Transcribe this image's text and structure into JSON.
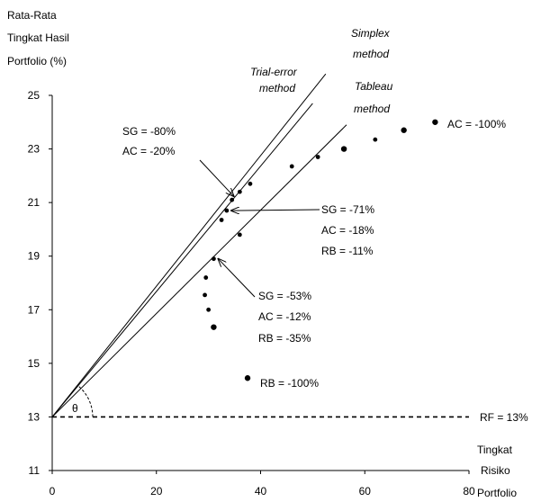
{
  "chart_data": {
    "type": "scatter",
    "ylabel": [
      "Rata-Rata",
      "Tingkat Hasil",
      "Portfolio (%)"
    ],
    "xlabel": [
      "Tingkat",
      "Risiko",
      "Portfolio"
    ],
    "xlim": [
      0,
      80
    ],
    "ylim": [
      11,
      25
    ],
    "x_ticks": [
      "0",
      "20",
      "40",
      "60",
      "80"
    ],
    "y_ticks": [
      "11",
      "13",
      "15",
      "17",
      "19",
      "21",
      "23",
      "25"
    ],
    "grid": false,
    "series": [
      {
        "points": [
          {
            "x": 73.5,
            "y": 24.0
          },
          {
            "x": 67.5,
            "y": 23.7
          },
          {
            "x": 62.0,
            "y": 23.35
          },
          {
            "x": 56.0,
            "y": 23.0
          },
          {
            "x": 51.0,
            "y": 22.7
          },
          {
            "x": 46.0,
            "y": 22.35
          },
          {
            "x": 38.0,
            "y": 21.7
          },
          {
            "x": 36.0,
            "y": 21.4
          },
          {
            "x": 34.5,
            "y": 21.1
          },
          {
            "x": 33.5,
            "y": 20.7
          },
          {
            "x": 32.5,
            "y": 20.35
          },
          {
            "x": 36.0,
            "y": 19.8
          },
          {
            "x": 31.0,
            "y": 18.9
          },
          {
            "x": 29.5,
            "y": 18.2
          },
          {
            "x": 29.3,
            "y": 17.55
          },
          {
            "x": 30.0,
            "y": 17.0
          },
          {
            "x": 31.0,
            "y": 16.35
          },
          {
            "x": 37.5,
            "y": 14.45
          }
        ]
      }
    ],
    "lines": [
      {
        "label": "Trial-error method",
        "x": [
          0,
          50
        ],
        "y": [
          13,
          24.7
        ]
      },
      {
        "label": "Simplex method",
        "x": [
          0,
          52.5
        ],
        "y": [
          13,
          25.8
        ]
      },
      {
        "label": "Tableau method",
        "x": [
          0,
          56.5
        ],
        "y": [
          13,
          23.9
        ]
      },
      {
        "label": "RF = 13%",
        "x": [
          0,
          80
        ],
        "y": [
          13,
          13
        ],
        "style": "dashed"
      }
    ],
    "annotations": [
      {
        "lines": [
          "SG = -80%",
          "AC = -20%"
        ],
        "arrow_to": {
          "x": 34.5,
          "y": 21.1
        }
      },
      {
        "lines": [
          "SG = -71%",
          "AC = -18%",
          "RB = -11%"
        ],
        "arrow_to": {
          "x": 33.5,
          "y": 20.7
        }
      },
      {
        "lines": [
          "SG = -53%",
          "AC = -12%",
          "RB = -35%"
        ],
        "arrow_to": {
          "x": 31.0,
          "y": 18.9
        }
      },
      {
        "lines": [
          "RB = -100%"
        ]
      },
      {
        "lines": [
          "AC =  -100%"
        ]
      },
      {
        "lines": [
          "θ"
        ]
      }
    ],
    "colors": {
      "ink": "#000000",
      "background": "#ffffff"
    }
  }
}
